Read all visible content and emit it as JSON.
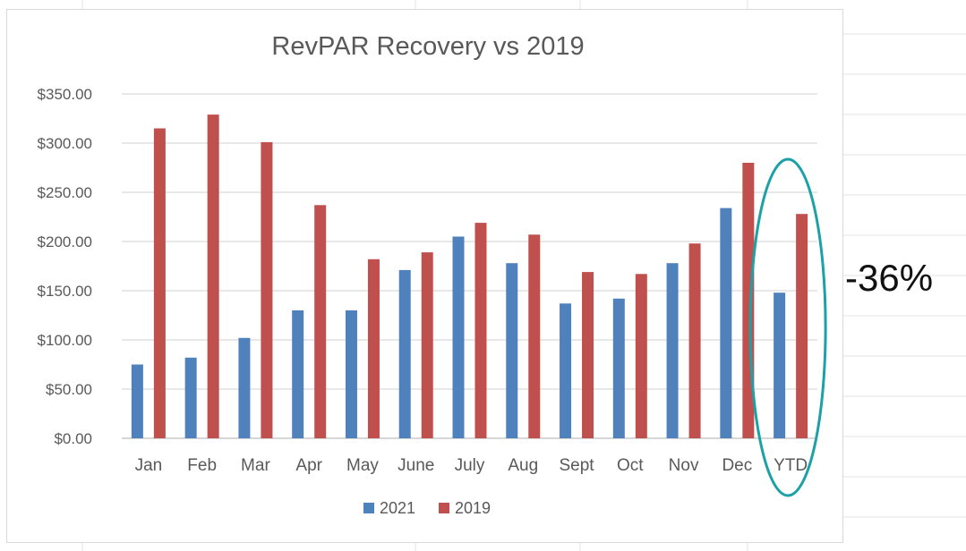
{
  "chart_data": {
    "type": "bar",
    "title": "RevPAR Recovery vs 2019",
    "categories": [
      "Jan",
      "Feb",
      "Mar",
      "Apr",
      "May",
      "June",
      "July",
      "Aug",
      "Sept",
      "Oct",
      "Nov",
      "Dec",
      "YTD"
    ],
    "series": [
      {
        "name": "2021",
        "color": "#4f81bd",
        "values": [
          75,
          82,
          102,
          130,
          130,
          171,
          205,
          178,
          137,
          142,
          178,
          234,
          148
        ]
      },
      {
        "name": "2019",
        "color": "#c0504d",
        "values": [
          315,
          329,
          301,
          237,
          182,
          189,
          219,
          207,
          169,
          167,
          198,
          280,
          228
        ]
      }
    ],
    "ylim": [
      0,
      350
    ],
    "ytick_labels": [
      "$0.00",
      "$50.00",
      "$100.00",
      "$150.00",
      "$200.00",
      "$250.00",
      "$300.00",
      "$350.00"
    ],
    "grid": true,
    "legend_position": "bottom",
    "highlight": {
      "category": "YTD",
      "shape": "ellipse",
      "color": "#1ba1a6"
    }
  },
  "callout": {
    "text": "-36%"
  }
}
